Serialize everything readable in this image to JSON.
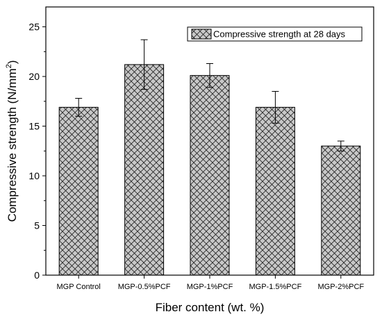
{
  "chart_data": {
    "type": "bar",
    "categories": [
      "MGP Control",
      "MGP-0.5%PCF",
      "MGP-1%PCF",
      "MGP-1.5%PCF",
      "MGP-2%PCF"
    ],
    "series": [
      {
        "name": "Compressive strength at 28 days",
        "values": [
          16.9,
          21.2,
          20.1,
          16.9,
          13.0
        ],
        "errors": [
          0.9,
          2.5,
          1.2,
          1.6,
          0.5
        ],
        "color": "#c8c8c8",
        "pattern": "crosshatch"
      }
    ],
    "xlabel": "Fiber content (wt. %)",
    "ylabel_main": "Compressive strength (N/mm",
    "ylabel_sup": "2",
    "ylabel_close": ")",
    "ylim": [
      0,
      27
    ],
    "yticks": [
      0,
      5,
      10,
      15,
      20,
      25
    ],
    "legend_position": "top-right",
    "grid": false
  }
}
